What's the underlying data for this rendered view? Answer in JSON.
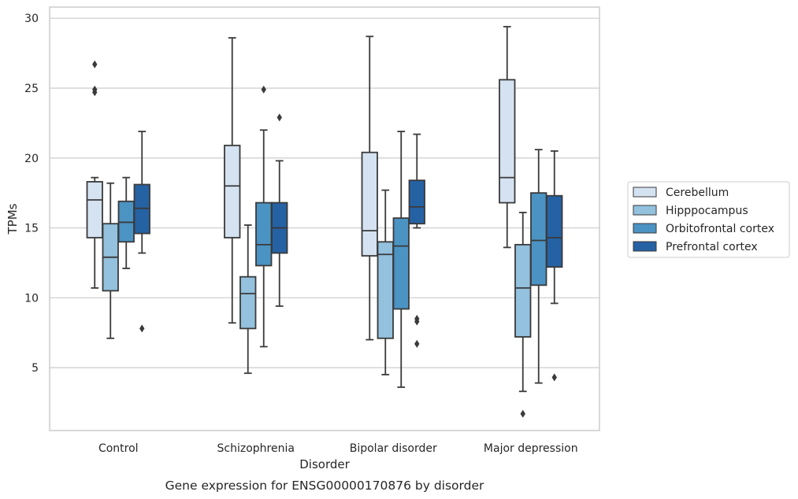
{
  "chart_data": {
    "type": "box",
    "xlabel": "Disorder",
    "ylabel": "TPMs",
    "caption": "Gene expression for ENSG00000170876 by disorder",
    "categories": [
      "Control",
      "Schizophrenia",
      "Bipolar disorder",
      "Major depression"
    ],
    "ylim": [
      0.5,
      30.8
    ],
    "yticks": [
      5,
      10,
      15,
      20,
      25,
      30
    ],
    "grid": "horizontal",
    "legend_position": "right",
    "colors": {
      "Cerebellum": "#d4e2f1",
      "Hipppocampus": "#93c1de",
      "Orbitofrontal cortex": "#4b93c3",
      "Prefrontal cortex": "#2562a4",
      "box_edge": "#3a3a3a",
      "grid": "#cccccc",
      "frame": "#cccccc"
    },
    "series": [
      {
        "name": "Cerebellum",
        "boxes": [
          {
            "category": "Control",
            "whislo": 10.7,
            "q1": 14.3,
            "median": 17.0,
            "q3": 18.3,
            "whishi": 18.6,
            "fliers": [
              24.7,
              24.9,
              26.7
            ]
          },
          {
            "category": "Schizophrenia",
            "whislo": 8.2,
            "q1": 14.3,
            "median": 18.0,
            "q3": 20.9,
            "whishi": 28.6,
            "fliers": []
          },
          {
            "category": "Bipolar disorder",
            "whislo": 7.0,
            "q1": 13.0,
            "median": 14.8,
            "q3": 20.4,
            "whishi": 28.7,
            "fliers": []
          },
          {
            "category": "Major depression",
            "whislo": 13.6,
            "q1": 16.8,
            "median": 18.6,
            "q3": 25.6,
            "whishi": 29.4,
            "fliers": []
          }
        ]
      },
      {
        "name": "Hipppocampus",
        "boxes": [
          {
            "category": "Control",
            "whislo": 7.1,
            "q1": 10.5,
            "median": 12.9,
            "q3": 15.3,
            "whishi": 18.2,
            "fliers": []
          },
          {
            "category": "Schizophrenia",
            "whislo": 4.6,
            "q1": 7.8,
            "median": 10.3,
            "q3": 11.5,
            "whishi": 15.2,
            "fliers": []
          },
          {
            "category": "Bipolar disorder",
            "whislo": 4.5,
            "q1": 7.1,
            "median": 13.1,
            "q3": 14.0,
            "whishi": 17.7,
            "fliers": []
          },
          {
            "category": "Major depression",
            "whislo": 3.3,
            "q1": 7.2,
            "median": 10.7,
            "q3": 13.8,
            "whishi": 16.1,
            "fliers": [
              1.7
            ]
          }
        ]
      },
      {
        "name": "Orbitofrontal cortex",
        "boxes": [
          {
            "category": "Control",
            "whislo": 12.1,
            "q1": 14.0,
            "median": 15.4,
            "q3": 16.9,
            "whishi": 18.6,
            "fliers": []
          },
          {
            "category": "Schizophrenia",
            "whislo": 6.5,
            "q1": 12.3,
            "median": 13.8,
            "q3": 16.8,
            "whishi": 22.0,
            "fliers": [
              24.9
            ]
          },
          {
            "category": "Bipolar disorder",
            "whislo": 3.6,
            "q1": 9.2,
            "median": 13.7,
            "q3": 15.7,
            "whishi": 21.9,
            "fliers": []
          },
          {
            "category": "Major depression",
            "whislo": 3.9,
            "q1": 10.9,
            "median": 14.1,
            "q3": 17.5,
            "whishi": 20.6,
            "fliers": []
          }
        ]
      },
      {
        "name": "Prefrontal cortex",
        "boxes": [
          {
            "category": "Control",
            "whislo": 13.2,
            "q1": 14.6,
            "median": 16.4,
            "q3": 18.1,
            "whishi": 21.9,
            "fliers": [
              7.8
            ]
          },
          {
            "category": "Schizophrenia",
            "whislo": 9.4,
            "q1": 13.2,
            "median": 15.0,
            "q3": 16.8,
            "whishi": 19.8,
            "fliers": [
              22.9
            ]
          },
          {
            "category": "Bipolar disorder",
            "whislo": 15.0,
            "q1": 15.3,
            "median": 16.5,
            "q3": 18.4,
            "whishi": 21.7,
            "fliers": [
              6.7,
              8.3,
              8.5
            ]
          },
          {
            "category": "Major depression",
            "whislo": 9.6,
            "q1": 12.2,
            "median": 14.3,
            "q3": 17.3,
            "whishi": 20.5,
            "fliers": [
              4.3
            ]
          }
        ]
      }
    ]
  }
}
